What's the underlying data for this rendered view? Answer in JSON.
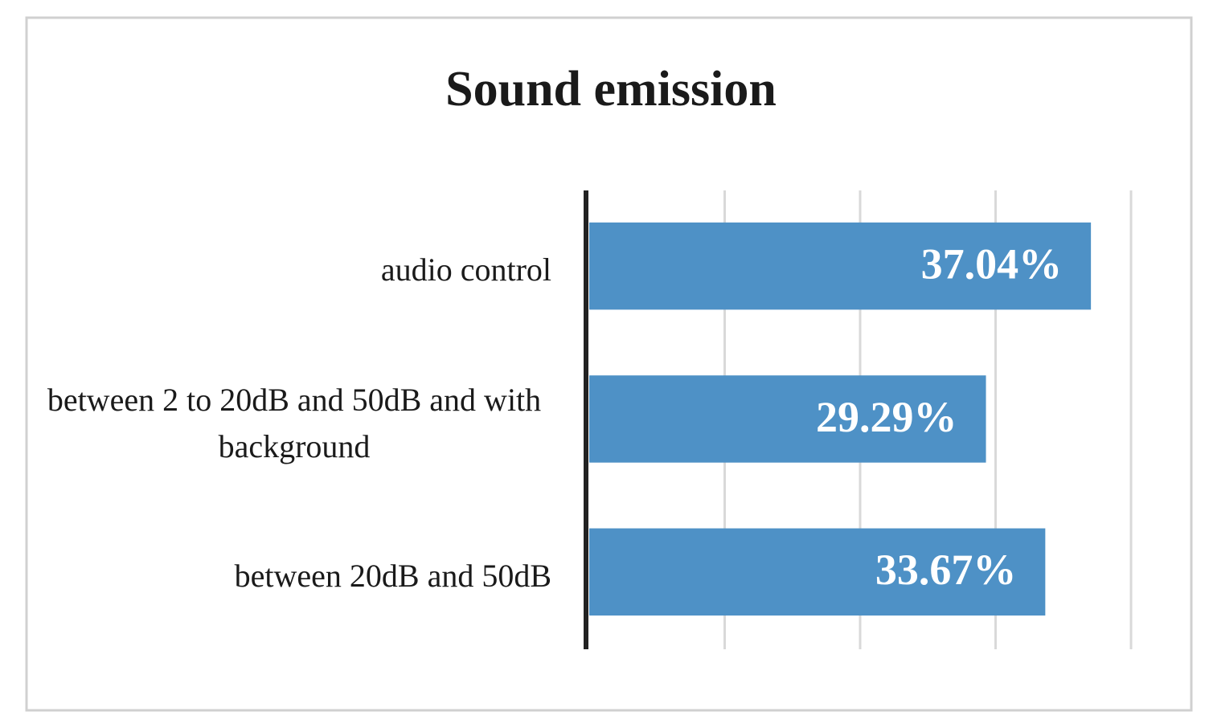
{
  "chart_data": {
    "type": "bar",
    "orientation": "horizontal",
    "title": "Sound emission",
    "categories": [
      "audio control",
      "between 2 to 20dB and 50dB and with background",
      "between 20dB and 50dB"
    ],
    "values": [
      37.04,
      29.29,
      33.67
    ],
    "value_labels": [
      "37.04%",
      "29.29%",
      "33.67%"
    ],
    "color": "#4e91c6",
    "xlim": [
      0,
      40
    ],
    "xticks": [
      0,
      10,
      20,
      30,
      40
    ],
    "grid": true
  }
}
